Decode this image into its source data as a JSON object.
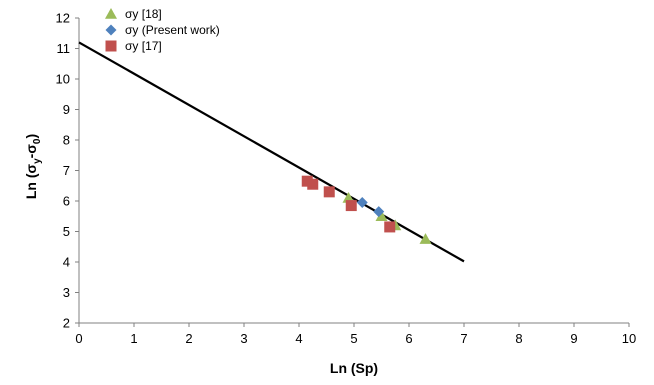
{
  "chart_data": {
    "type": "scatter",
    "xlabel": "Ln (Sp)",
    "ylabel_main": "Ln (σ",
    "ylabel_sub1": "y",
    "ylabel_mid": "-σ",
    "ylabel_sub2": "0",
    "ylabel_end": ")",
    "xlim": [
      0,
      10
    ],
    "ylim": [
      2,
      12
    ],
    "x_ticks": [
      "0",
      "1",
      "2",
      "3",
      "4",
      "5",
      "6",
      "7",
      "8",
      "9",
      "10"
    ],
    "y_ticks": [
      "2",
      "3",
      "4",
      "5",
      "6",
      "7",
      "8",
      "9",
      "10",
      "11",
      "12"
    ],
    "grid": false,
    "legend_position": "top-left",
    "series": [
      {
        "name": "σy [18]",
        "marker": "triangle",
        "color": "#9bbb59",
        "points": [
          {
            "x": 4.9,
            "y": 6.1
          },
          {
            "x": 5.5,
            "y": 5.5
          },
          {
            "x": 5.75,
            "y": 5.2
          },
          {
            "x": 6.3,
            "y": 4.75
          }
        ]
      },
      {
        "name": "σy (Present work)",
        "marker": "diamond",
        "color": "#4f81bd",
        "points": [
          {
            "x": 5.15,
            "y": 5.95
          },
          {
            "x": 5.45,
            "y": 5.65
          }
        ]
      },
      {
        "name": "σy [17]",
        "marker": "square",
        "color": "#c0504d",
        "points": [
          {
            "x": 4.15,
            "y": 6.65
          },
          {
            "x": 4.25,
            "y": 6.55
          },
          {
            "x": 4.55,
            "y": 6.3
          },
          {
            "x": 4.95,
            "y": 5.85
          },
          {
            "x": 5.65,
            "y": 5.15
          }
        ]
      }
    ],
    "fit_line": {
      "color": "#000000",
      "points": [
        {
          "x": 0,
          "y": 11.2
        },
        {
          "x": 7,
          "y": 4.02
        }
      ]
    }
  }
}
